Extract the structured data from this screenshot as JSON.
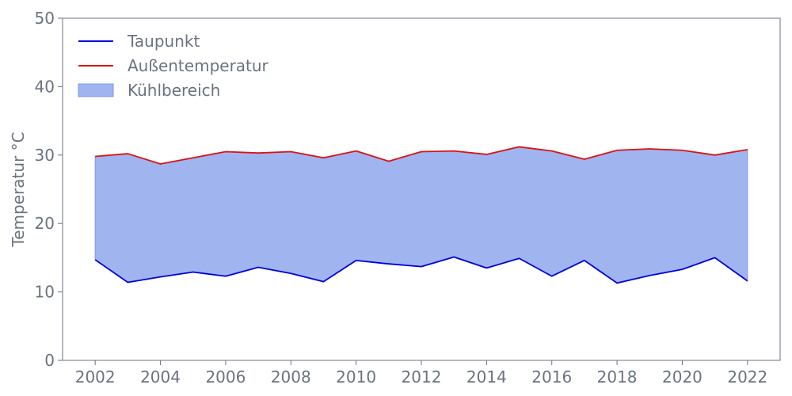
{
  "chart_data": {
    "type": "area",
    "title": "",
    "xlabel": "",
    "ylabel": "Temperatur °C",
    "x": [
      2002,
      2003,
      2004,
      2005,
      2006,
      2007,
      2008,
      2009,
      2010,
      2011,
      2012,
      2013,
      2014,
      2015,
      2016,
      2017,
      2018,
      2019,
      2020,
      2021,
      2022
    ],
    "xlim": [
      2001,
      2023
    ],
    "ylim": [
      0,
      50
    ],
    "xticks": [
      2002,
      2004,
      2006,
      2008,
      2010,
      2012,
      2014,
      2016,
      2018,
      2020,
      2022
    ],
    "yticks": [
      0,
      10,
      20,
      30,
      40,
      50
    ],
    "grid": false,
    "legend_position": "top-left",
    "series": [
      {
        "name": "Taupunkt",
        "kind": "line",
        "color": "#0000dd",
        "values": [
          14.7,
          11.4,
          12.2,
          12.9,
          12.3,
          13.6,
          12.7,
          11.5,
          14.6,
          14.1,
          13.7,
          15.1,
          13.5,
          14.9,
          12.3,
          14.6,
          11.3,
          12.4,
          13.3,
          15.0,
          11.6
        ]
      },
      {
        "name": "Außentemperatur",
        "kind": "line",
        "color": "#dd1111",
        "values": [
          29.8,
          30.2,
          28.7,
          29.6,
          30.5,
          30.3,
          30.5,
          29.6,
          30.6,
          29.1,
          30.5,
          30.6,
          30.1,
          31.2,
          30.6,
          29.4,
          30.7,
          30.9,
          30.7,
          30.0,
          30.8
        ]
      }
    ],
    "fill_between": {
      "name": "Kühlbereich",
      "color": "#a0b4f0",
      "edge_color": "#7f96e8",
      "lower": "Taupunkt",
      "upper": "Außentemperatur"
    },
    "axis_color": "#6b7280"
  }
}
